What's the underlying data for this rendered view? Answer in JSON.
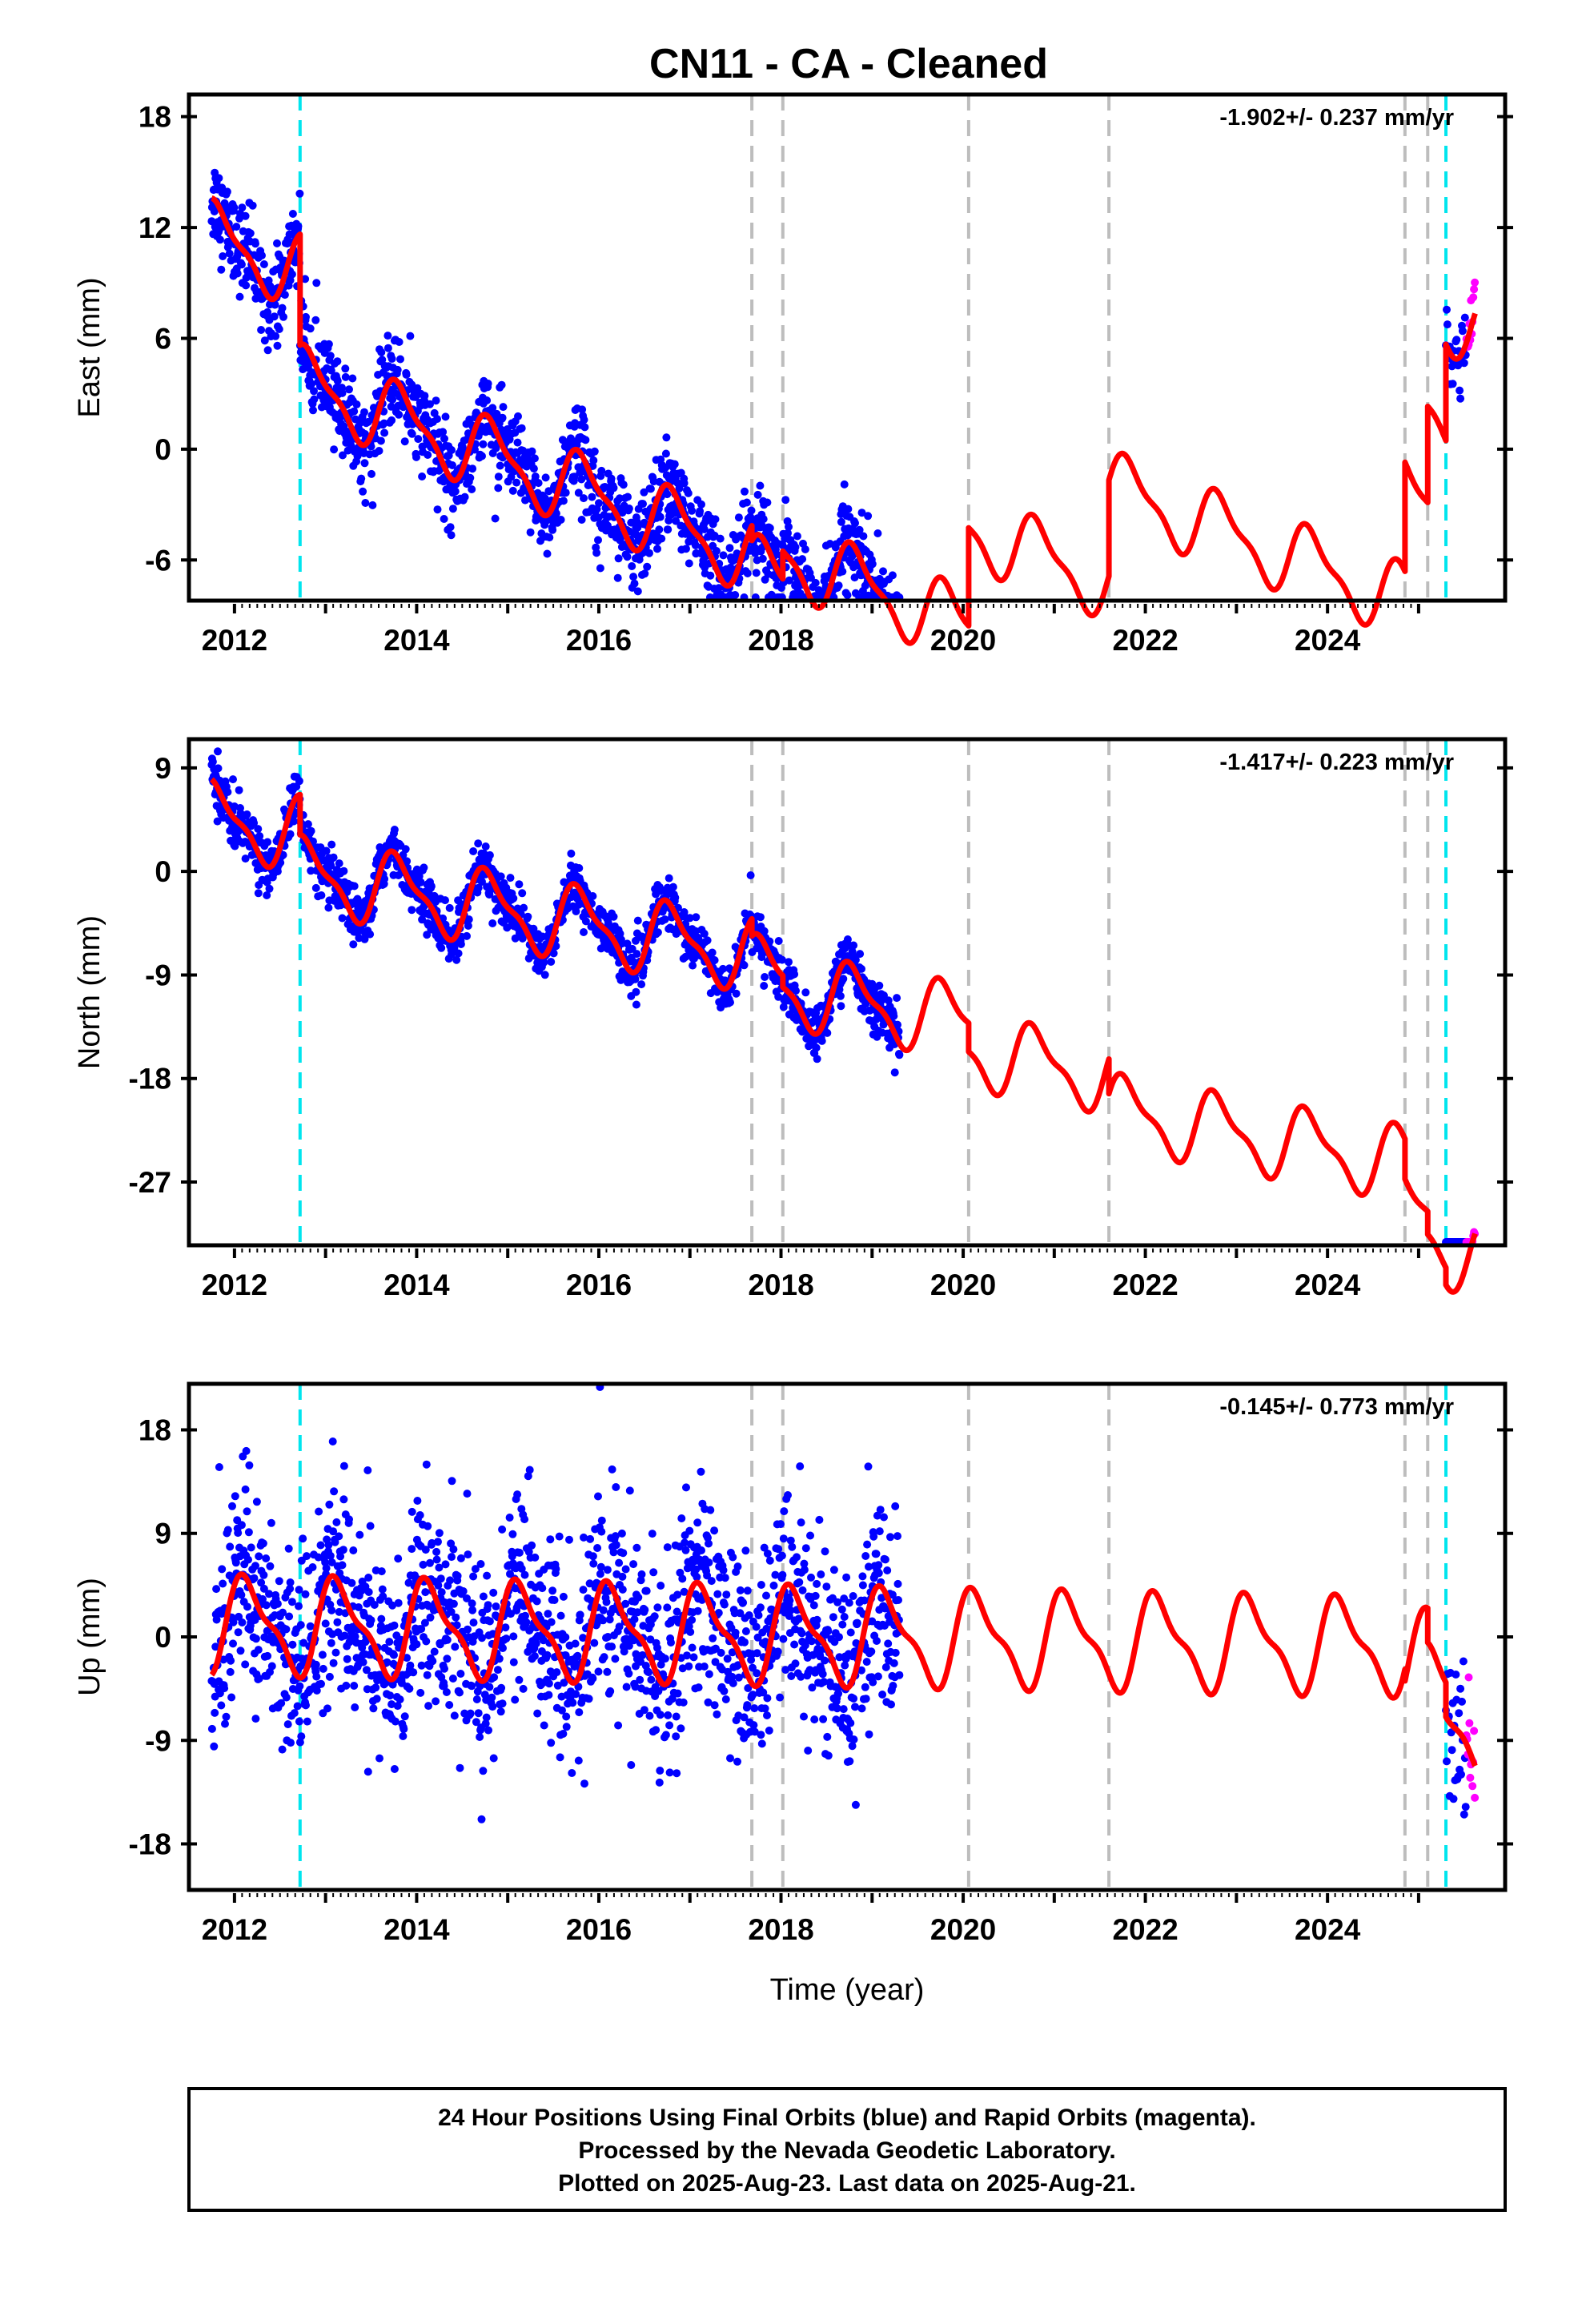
{
  "chart_data": {
    "type": "scatter",
    "title": "CN11  - CA - Cleaned",
    "xlabel": "Time (year)",
    "xlim": [
      2011.5,
      2025.95
    ],
    "x_ticks": [
      "2012",
      "2014",
      "2016",
      "2018",
      "2020",
      "2022",
      "2024"
    ],
    "x_tick_values": [
      2012,
      2014,
      2016,
      2018,
      2020,
      2022,
      2024
    ],
    "colors": {
      "final_points": "#0000ff",
      "rapid_points": "#ff00ff",
      "model": "#ff0000",
      "equipment_change": "#00e5ee",
      "other_offset": "#bdbdbd"
    },
    "offsets": {
      "cyan": [
        2012.72,
        2025.3
      ],
      "gray": [
        2017.68,
        2018.02,
        2020.06,
        2021.6,
        2024.85,
        2025.1
      ]
    },
    "panels": [
      {
        "ylabel": "East (mm)",
        "rate": "-1.902+/- 0.237 mm/yr",
        "ylim": [
          -8.2,
          19.2
        ],
        "y_ticks": [
          "18",
          "12",
          "6",
          "0",
          "-6"
        ],
        "y_tick_values": [
          18,
          12,
          6,
          0,
          -6
        ],
        "final_range": [
          2011.75,
          2019.3
        ],
        "rapid_range": [
          2025.3,
          2025.62
        ],
        "scatter_sd": 1.2,
        "model": {
          "trend": [
            11.0,
            -1.902
          ],
          "annual_amp": 1.8,
          "annual_phase": 0.58,
          "steps": [
            [
              2012.72,
              -6.0
            ],
            [
              2017.68,
              -0.8
            ],
            [
              2018.02,
              1.5
            ],
            [
              2020.06,
              5.3
            ],
            [
              2021.6,
              5.2
            ],
            [
              2024.85,
              5.9
            ],
            [
              2025.1,
              5.2
            ],
            [
              2025.3,
              5.2
            ]
          ]
        }
      },
      {
        "ylabel": "North (mm)",
        "rate": "-1.417+/- 0.223 mm/yr",
        "ylim": [
          -32.5,
          11.5
        ],
        "y_ticks": [
          "9",
          "0",
          "-9",
          "-18",
          "-27"
        ],
        "y_tick_values": [
          9,
          0,
          -9,
          -18,
          -27
        ],
        "final_range": [
          2011.75,
          2019.3
        ],
        "rapid_range": [
          2025.3,
          2025.62
        ],
        "scatter_sd": 1.1,
        "model": {
          "trend": [
            4.3,
            -1.417
          ],
          "annual_amp": 2.9,
          "annual_phase": 0.55,
          "steps": [
            [
              2012.72,
              -3.5
            ],
            [
              2017.68,
              -1.5
            ],
            [
              2018.02,
              -1.0
            ],
            [
              2020.06,
              -2.5
            ],
            [
              2021.6,
              -3.0
            ],
            [
              2024.85,
              -3.5
            ],
            [
              2025.1,
              -2.0
            ],
            [
              2025.3,
              -1.5
            ]
          ]
        }
      },
      {
        "ylabel": "Up (mm)",
        "rate": "-0.145+/- 0.773 mm/yr",
        "ylim": [
          -22,
          22
        ],
        "y_ticks": [
          "18",
          "9",
          "0",
          "-9",
          "-18"
        ],
        "y_tick_values": [
          18,
          9,
          0,
          -9,
          -18
        ],
        "final_range": [
          2011.75,
          2019.3
        ],
        "rapid_range": [
          2025.3,
          2025.62
        ],
        "scatter_sd": 4.3,
        "model": {
          "trend": [
            1.0,
            -0.145
          ],
          "annual_amp": 3.8,
          "annual_phase": 0.9,
          "steps": [
            [
              2024.85,
              -1.0
            ],
            [
              2025.1,
              -3.0
            ],
            [
              2025.3,
              -3.0
            ]
          ]
        }
      }
    ]
  },
  "footer": {
    "line1": "24 Hour Positions Using Final Orbits (blue) and Rapid Orbits (magenta).",
    "line2": "Processed by the Nevada Geodetic Laboratory.",
    "line3": "Plotted on 2025-Aug-23. Last data on 2025-Aug-21."
  }
}
